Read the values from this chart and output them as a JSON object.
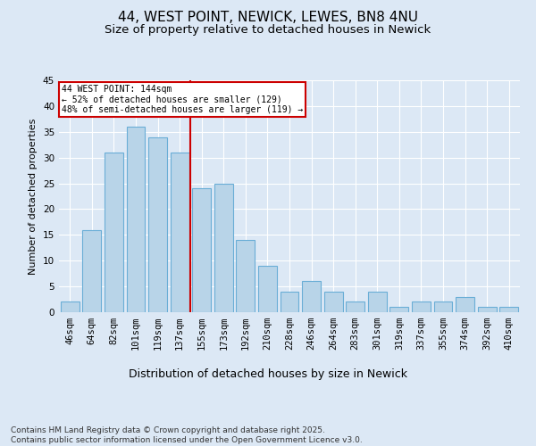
{
  "title": "44, WEST POINT, NEWICK, LEWES, BN8 4NU",
  "subtitle": "Size of property relative to detached houses in Newick",
  "xlabel": "Distribution of detached houses by size in Newick",
  "ylabel": "Number of detached properties",
  "categories": [
    "46sqm",
    "64sqm",
    "82sqm",
    "101sqm",
    "119sqm",
    "137sqm",
    "155sqm",
    "173sqm",
    "192sqm",
    "210sqm",
    "228sqm",
    "246sqm",
    "264sqm",
    "283sqm",
    "301sqm",
    "319sqm",
    "337sqm",
    "355sqm",
    "374sqm",
    "392sqm",
    "410sqm"
  ],
  "values": [
    2,
    16,
    31,
    36,
    34,
    31,
    24,
    25,
    14,
    9,
    4,
    6,
    4,
    2,
    4,
    1,
    2,
    2,
    3,
    1,
    1
  ],
  "bar_color": "#b8d4e8",
  "bar_edge_color": "#6aaed6",
  "vline_x": 5.5,
  "vline_color": "#cc0000",
  "annotation_text": "44 WEST POINT: 144sqm\n← 52% of detached houses are smaller (129)\n48% of semi-detached houses are larger (119) →",
  "annotation_box_color": "#ffffff",
  "annotation_box_edge_color": "#cc0000",
  "ylim": [
    0,
    45
  ],
  "yticks": [
    0,
    5,
    10,
    15,
    20,
    25,
    30,
    35,
    40,
    45
  ],
  "background_color": "#dce8f5",
  "plot_bg_color": "#dce8f5",
  "grid_color": "#ffffff",
  "footer": "Contains HM Land Registry data © Crown copyright and database right 2025.\nContains public sector information licensed under the Open Government Licence v3.0.",
  "title_fontsize": 11,
  "subtitle_fontsize": 9.5,
  "xlabel_fontsize": 9,
  "ylabel_fontsize": 8,
  "tick_fontsize": 7.5,
  "footer_fontsize": 6.5
}
